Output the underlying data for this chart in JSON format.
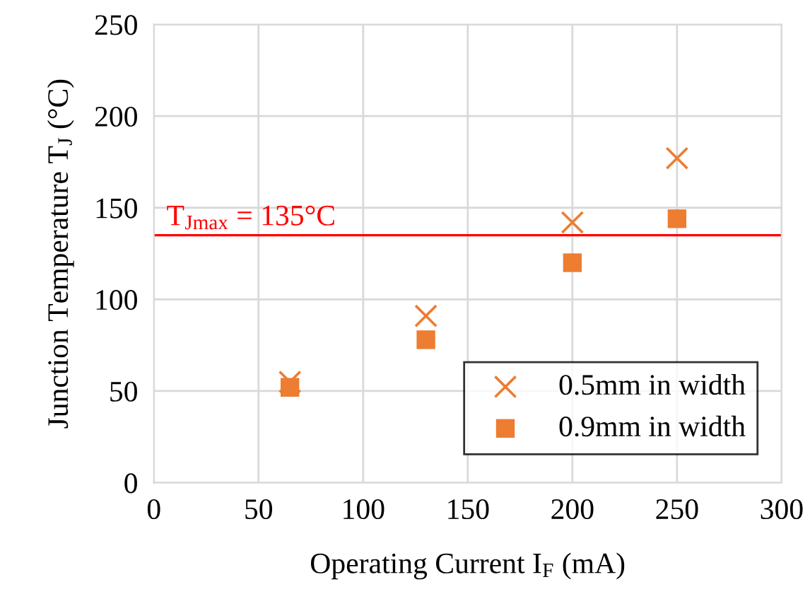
{
  "chart_data": {
    "type": "scatter",
    "xlabel": "Operating Current I$_{F}$ (mA)",
    "ylabel": "Junction Temperature T$_{J}$ (°C)",
    "series": [
      {
        "name": "0.5mm in width",
        "color": "#ed7d31",
        "marker": "cross",
        "x": [
          65,
          130,
          200,
          250
        ],
        "values": [
          55,
          91,
          142,
          177
        ]
      },
      {
        "name": "0.9mm in width",
        "color": "#ed7d31",
        "marker": "square",
        "x": [
          65,
          130,
          200,
          250
        ],
        "values": [
          52,
          78,
          120,
          144
        ]
      }
    ],
    "xlim": [
      0,
      300
    ],
    "xticks": [
      0,
      50,
      100,
      150,
      200,
      250,
      300
    ],
    "ylim": [
      0,
      250
    ],
    "yticks": [
      0,
      50,
      100,
      150,
      200,
      250
    ],
    "ref_lines": [
      {
        "axis": "y",
        "value": 135,
        "label": "T$_{Jmax}$ = 135°C",
        "color": "#ff0000"
      }
    ],
    "grid": true,
    "legend": "bottom right"
  }
}
